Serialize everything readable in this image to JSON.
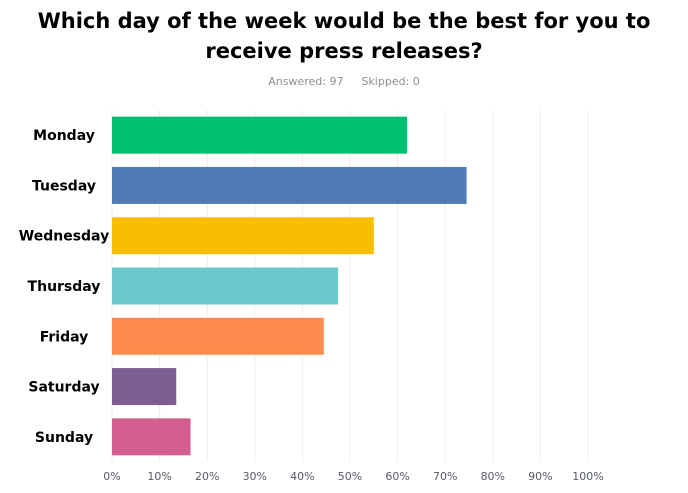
{
  "header": {
    "title_line1": "Which day of the week would be the best for you to",
    "title_line2": "receive press releases?",
    "answered": "Answered: 97",
    "skipped": "Skipped: 0"
  },
  "chart_data": {
    "type": "bar",
    "orientation": "horizontal",
    "categories": [
      "Monday",
      "Tuesday",
      "Wednesday",
      "Thursday",
      "Friday",
      "Saturday",
      "Sunday"
    ],
    "values": [
      62,
      74.5,
      55,
      47.5,
      44.5,
      13.5,
      16.5
    ],
    "colors": [
      "#00bf6f",
      "#507cb6",
      "#f9be00",
      "#6bc8cd",
      "#ff8b4f",
      "#7d5e90",
      "#d25f90"
    ],
    "xlim": [
      0,
      100
    ],
    "xticks": [
      "0%",
      "10%",
      "20%",
      "30%",
      "40%",
      "50%",
      "60%",
      "70%",
      "80%",
      "90%",
      "100%"
    ],
    "grid": true
  }
}
